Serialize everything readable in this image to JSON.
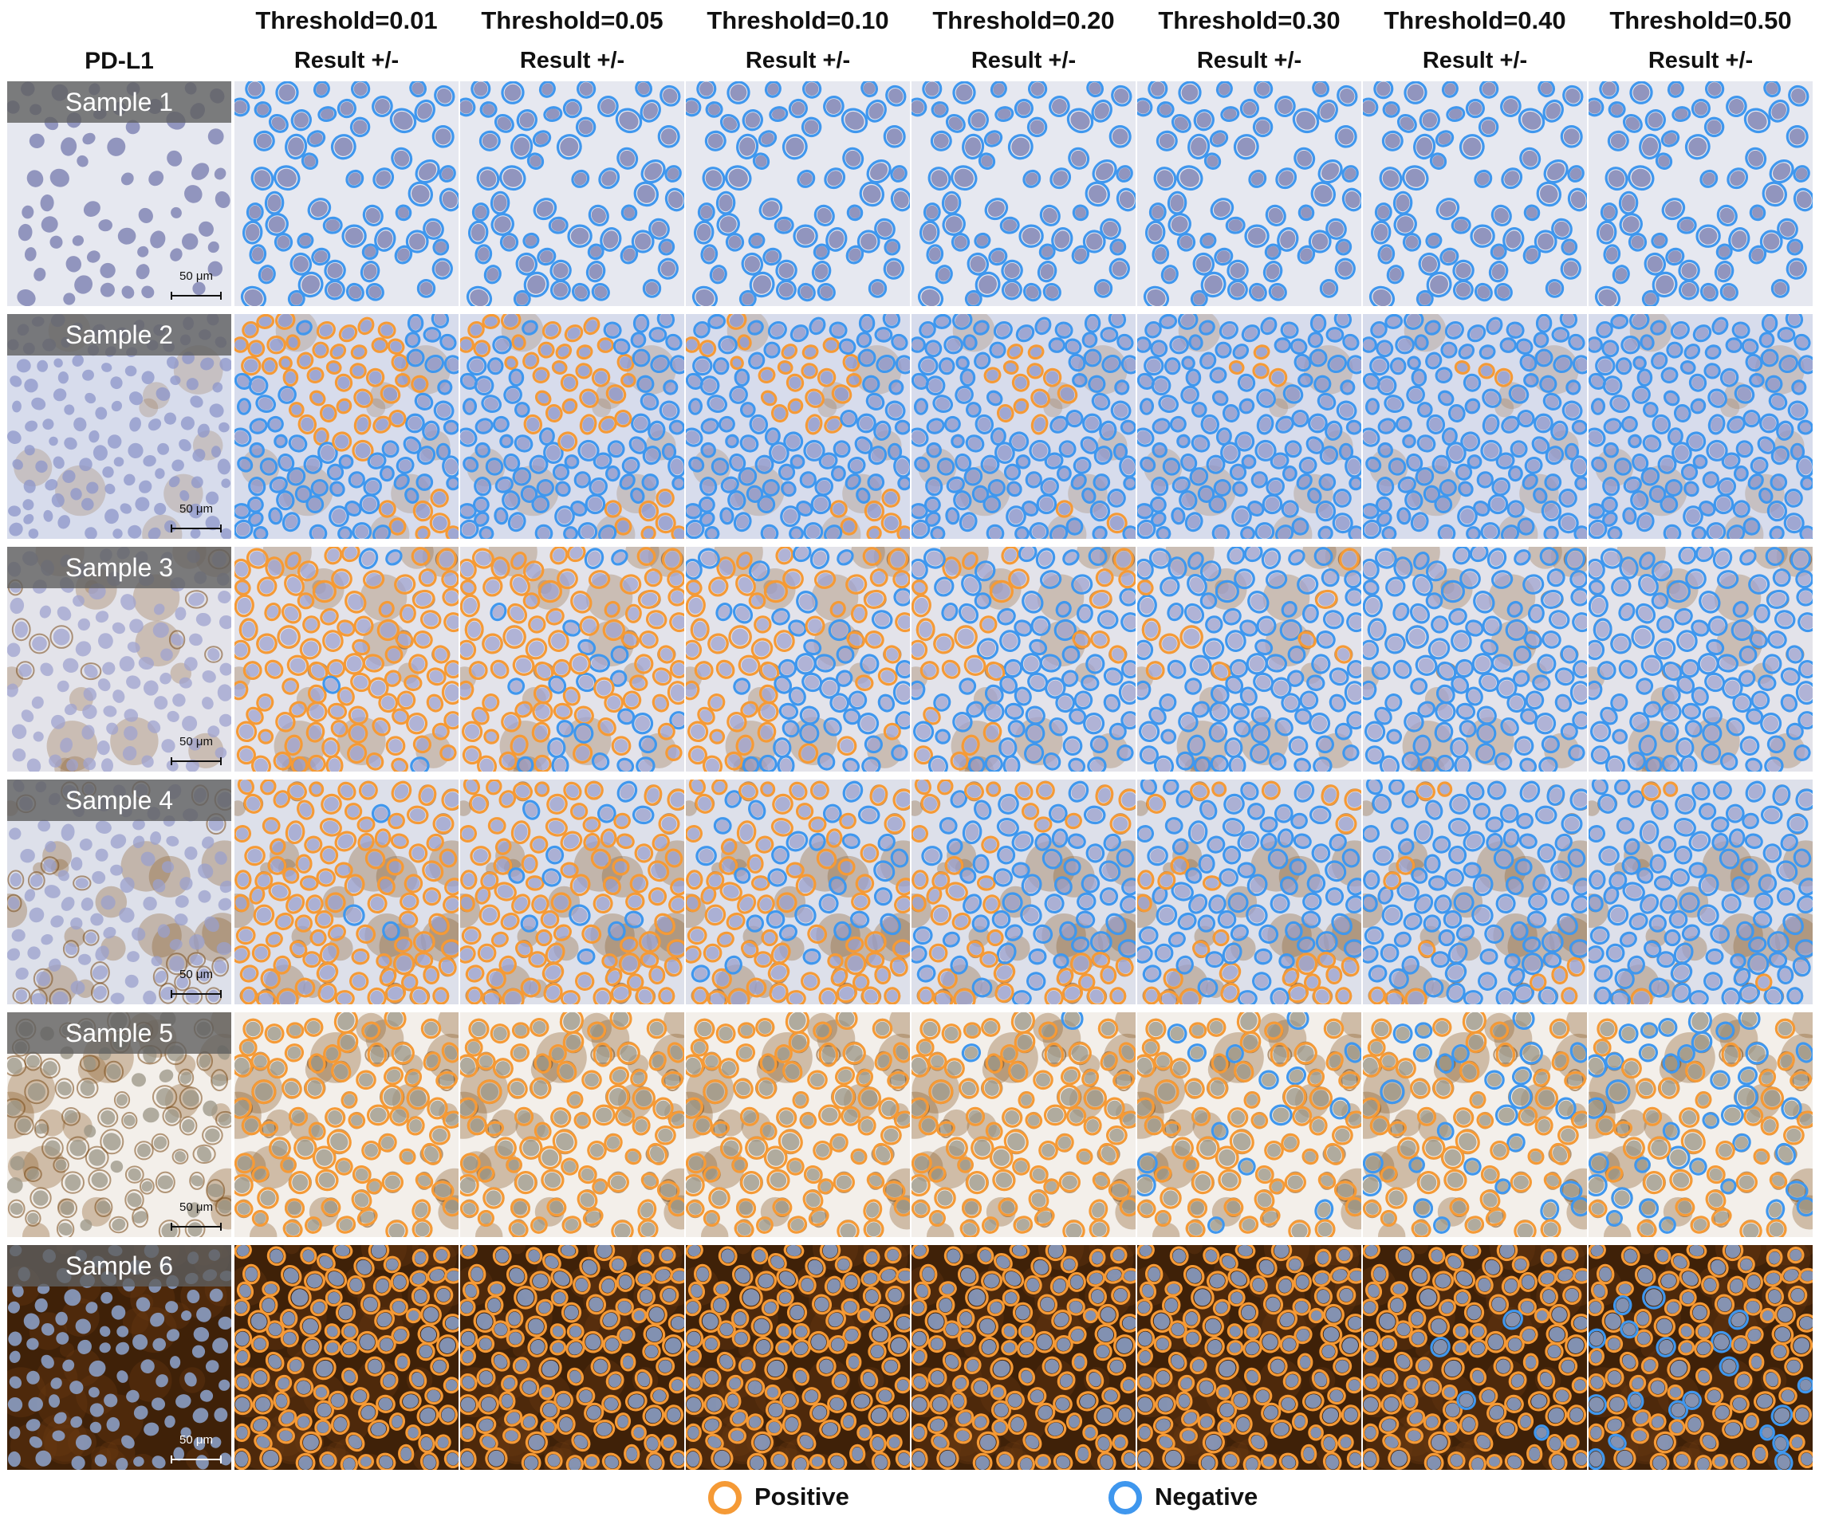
{
  "figure": {
    "stain_header": "PD-L1",
    "columns": [
      {
        "threshold": "Threshold=0.01",
        "result": "Result +/-",
        "value": 0.01
      },
      {
        "threshold": "Threshold=0.05",
        "result": "Result +/-",
        "value": 0.05
      },
      {
        "threshold": "Threshold=0.10",
        "result": "Result +/-",
        "value": 0.1
      },
      {
        "threshold": "Threshold=0.20",
        "result": "Result +/-",
        "value": 0.2
      },
      {
        "threshold": "Threshold=0.30",
        "result": "Result +/-",
        "value": 0.3
      },
      {
        "threshold": "Threshold=0.40",
        "result": "Result +/-",
        "value": 0.4
      },
      {
        "threshold": "Threshold=0.50",
        "result": "Result +/-",
        "value": 0.5
      }
    ],
    "rows": [
      {
        "label": "Sample 1",
        "scale_bar": "50 μm",
        "staining": "negative",
        "background": "#e6e8f0",
        "nucleus": "#7479ad"
      },
      {
        "label": "Sample 2",
        "scale_bar": "50 μm",
        "staining": "weak-focal",
        "background": "#d7dcec",
        "nucleus": "#8c95c9"
      },
      {
        "label": "Sample 3",
        "scale_bar": "50 μm",
        "staining": "weak-membranous",
        "background": "#e3e3ea",
        "nucleus": "#9fa3cf"
      },
      {
        "label": "Sample 4",
        "scale_bar": "50 μm",
        "staining": "moderate",
        "background": "#dde0ea",
        "nucleus": "#9aa0cc"
      },
      {
        "label": "Sample 5",
        "scale_bar": "50 μm",
        "staining": "strong-scattered",
        "background": "#f3efea",
        "nucleus": "#9a9484"
      },
      {
        "label": "Sample 6",
        "scale_bar": "50 μm",
        "staining": "strong-diffuse",
        "background": "#3f2108",
        "nucleus": "#8ea4cf"
      }
    ],
    "legend": [
      {
        "label": "Positive",
        "color": "#f59a36"
      },
      {
        "label": "Negative",
        "color": "#3f97ee"
      }
    ]
  }
}
